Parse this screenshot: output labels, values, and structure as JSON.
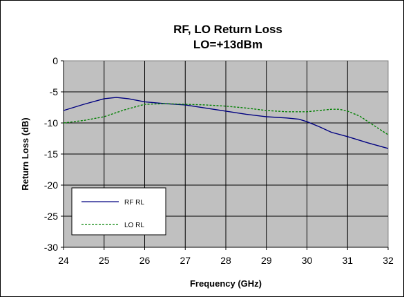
{
  "chart_data": {
    "type": "line",
    "title": "RF, LO Return Loss",
    "subtitle": "LO=+13dBm",
    "xlabel": "Frequency (GHz)",
    "ylabel": "Return Loss (dB)",
    "xlim": [
      24,
      32
    ],
    "ylim": [
      -30,
      0
    ],
    "xticks": [
      24,
      25,
      26,
      27,
      28,
      29,
      30,
      31,
      32
    ],
    "yticks": [
      0,
      -5,
      -10,
      -15,
      -20,
      -25,
      -30
    ],
    "grid": true,
    "legend_position": "bottom-left",
    "plot_background": "#c0c0c0",
    "series": [
      {
        "name": "RF RL",
        "color": "#000080",
        "style": "solid",
        "x": [
          24,
          24.5,
          25,
          25.3,
          25.6,
          26,
          26.5,
          27,
          27.5,
          28,
          28.5,
          29,
          29.5,
          29.8,
          30,
          30.3,
          30.6,
          31,
          31.5,
          32
        ],
        "y": [
          -8,
          -7,
          -6.1,
          -5.9,
          -6.1,
          -6.6,
          -6.9,
          -7.1,
          -7.6,
          -8.1,
          -8.6,
          -9.0,
          -9.2,
          -9.4,
          -9.8,
          -10.6,
          -11.5,
          -12.2,
          -13.2,
          -14.1
        ]
      },
      {
        "name": "LO RL",
        "color": "#008000",
        "style": "dashed",
        "x": [
          24,
          24.5,
          25,
          25.5,
          26,
          26.5,
          27,
          27.5,
          28,
          28.5,
          29,
          29.5,
          30,
          30.3,
          30.6,
          30.8,
          31,
          31.3,
          31.6,
          32
        ],
        "y": [
          -10,
          -9.6,
          -9.0,
          -7.9,
          -7.0,
          -6.9,
          -7.0,
          -7.1,
          -7.3,
          -7.6,
          -8.0,
          -8.2,
          -8.2,
          -8.0,
          -7.8,
          -7.8,
          -8.1,
          -8.9,
          -10.2,
          -11.9
        ]
      }
    ]
  }
}
